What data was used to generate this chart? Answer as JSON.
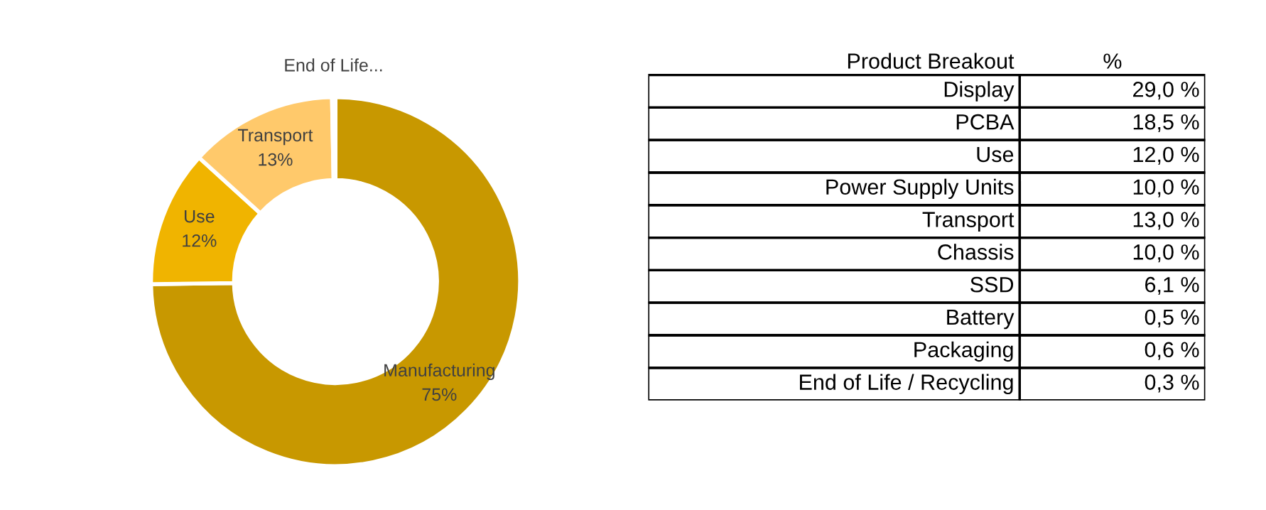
{
  "chart_data": [
    {
      "type": "donut",
      "categories": [
        "Manufacturing",
        "Use",
        "Transport",
        "End of Life..."
      ],
      "values": [
        75,
        12,
        13,
        0.3
      ],
      "value_labels": [
        "75%",
        "12%",
        "13%",
        null
      ],
      "colors": [
        "#c89800",
        "#f0b400",
        "#ffc96b",
        "#ffe2a8"
      ]
    },
    {
      "type": "other",
      "title": "Product Breakout",
      "subtitle": "%",
      "categories": [
        "Display",
        "PCBA",
        "Use",
        "Power Supply Units",
        "Transport",
        "Chassis",
        "SSD",
        "Battery",
        "Packaging",
        "End of Life / Recycling"
      ],
      "value_labels": [
        "29,0 %",
        "18,5 %",
        "12,0 %",
        "10,0 %",
        "13,0 %",
        "10,0 %",
        "6,1 %",
        "0,5 %",
        "0,6 %",
        "0,3 %"
      ]
    }
  ]
}
